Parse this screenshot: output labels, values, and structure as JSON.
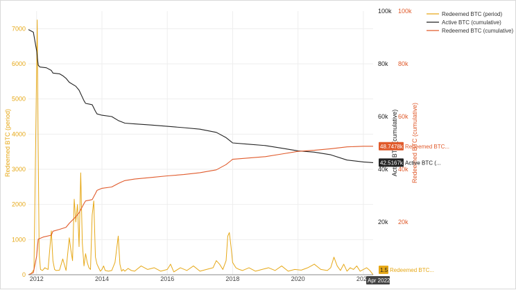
{
  "chart_data": {
    "type": "line",
    "title": "",
    "x_axis": {
      "ticks": [
        "2012",
        "2014",
        "2016",
        "2018",
        "2020",
        "2022"
      ],
      "range": [
        2011.75,
        2022.3
      ]
    },
    "y_left": {
      "label": "Redeemed BTC (period)",
      "range": [
        0,
        7500
      ],
      "ticks": [
        "0",
        "1000",
        "2000",
        "3000",
        "4000",
        "5000",
        "6000",
        "7000"
      ],
      "color": "#e6a817"
    },
    "y_right_active": {
      "label": "Active BTC (cumulative)",
      "range": [
        0,
        100000
      ],
      "ticks": [
        "20k",
        "40k",
        "60k",
        "80k",
        "100k"
      ],
      "color": "#222222"
    },
    "y_right_redeemed": {
      "label": "Redeemed BTC (cumulative)",
      "range": [
        0,
        100000
      ],
      "ticks": [
        "20k",
        "40k",
        "60k",
        "80k",
        "100k"
      ],
      "color": "#e05a2b"
    },
    "legend_position": "top-right",
    "series": [
      {
        "name": "Redeemed BTC (period)",
        "axis": "left",
        "color": "#e6a817",
        "x": [
          2011.75,
          2011.83,
          2011.92,
          2012.0,
          2012.02,
          2012.05,
          2012.08,
          2012.12,
          2012.18,
          2012.25,
          2012.35,
          2012.45,
          2012.5,
          2012.55,
          2012.6,
          2012.7,
          2012.8,
          2012.9,
          2013.0,
          2013.05,
          2013.1,
          2013.15,
          2013.2,
          2013.25,
          2013.3,
          2013.35,
          2013.4,
          2013.45,
          2013.5,
          2013.55,
          2013.6,
          2013.65,
          2013.7,
          2013.75,
          2013.8,
          2013.85,
          2013.9,
          2013.95,
          2014.0,
          2014.05,
          2014.1,
          2014.2,
          2014.3,
          2014.4,
          2014.5,
          2014.55,
          2014.6,
          2014.65,
          2014.7,
          2014.8,
          2014.9,
          2015.0,
          2015.2,
          2015.4,
          2015.6,
          2015.8,
          2016.0,
          2016.1,
          2016.2,
          2016.4,
          2016.6,
          2016.8,
          2017.0,
          2017.2,
          2017.4,
          2017.5,
          2017.6,
          2017.7,
          2017.8,
          2017.85,
          2017.9,
          2017.95,
          2018.0,
          2018.1,
          2018.2,
          2018.3,
          2018.5,
          2018.7,
          2018.9,
          2019.1,
          2019.3,
          2019.5,
          2019.7,
          2019.9,
          2020.1,
          2020.3,
          2020.5,
          2020.7,
          2020.9,
          2021.0,
          2021.1,
          2021.2,
          2021.3,
          2021.4,
          2021.5,
          2021.6,
          2021.7,
          2021.8,
          2021.9,
          2022.0,
          2022.1,
          2022.2,
          2022.3
        ],
        "values": [
          0,
          30,
          150,
          5800,
          7250,
          3500,
          600,
          150,
          120,
          200,
          150,
          1250,
          400,
          150,
          120,
          130,
          450,
          120,
          1050,
          700,
          400,
          2150,
          1500,
          2000,
          800,
          2900,
          900,
          250,
          600,
          350,
          200,
          150,
          1700,
          2100,
          500,
          300,
          200,
          100,
          150,
          250,
          120,
          100,
          120,
          350,
          1100,
          300,
          100,
          150,
          100,
          180,
          120,
          100,
          250,
          150,
          200,
          100,
          150,
          300,
          80,
          200,
          120,
          250,
          100,
          150,
          200,
          400,
          300,
          150,
          400,
          1100,
          1200,
          800,
          350,
          200,
          150,
          120,
          200,
          100,
          150,
          200,
          120,
          250,
          100,
          150,
          130,
          200,
          300,
          150,
          120,
          200,
          500,
          250,
          120,
          300,
          100,
          200,
          150,
          250,
          100,
          150,
          200,
          120,
          1.5
        ]
      },
      {
        "name": "Active BTC (cumulative)",
        "axis": "right",
        "color": "#222222",
        "x": [
          2011.75,
          2011.9,
          2012.0,
          2012.05,
          2012.1,
          2012.3,
          2012.45,
          2012.5,
          2012.7,
          2012.8,
          2012.9,
          2013.0,
          2013.2,
          2013.3,
          2013.45,
          2013.5,
          2013.7,
          2013.8,
          2013.85,
          2014.0,
          2014.3,
          2014.5,
          2014.6,
          2014.7,
          2015.0,
          2015.5,
          2016.0,
          2016.5,
          2017.0,
          2017.5,
          2017.8,
          2017.95,
          2018.0,
          2018.5,
          2019.0,
          2019.5,
          2020.0,
          2020.5,
          2021.0,
          2021.5,
          2022.0,
          2022.3
        ],
        "values": [
          93000,
          92000,
          85000,
          79500,
          78800,
          78500,
          77500,
          76500,
          76200,
          75500,
          74500,
          73000,
          71500,
          70000,
          66000,
          65000,
          64500,
          62000,
          61000,
          60500,
          60000,
          58500,
          58000,
          57500,
          57200,
          56800,
          56300,
          55800,
          55200,
          54000,
          52000,
          50500,
          50000,
          49500,
          49000,
          48000,
          47000,
          46500,
          45500,
          43500,
          42800,
          42517
        ]
      },
      {
        "name": "Redeemed BTC (cumulative)",
        "axis": "right",
        "color": "#e05a2b",
        "x": [
          2011.75,
          2011.9,
          2012.0,
          2012.05,
          2012.2,
          2012.45,
          2012.5,
          2012.7,
          2012.9,
          2013.0,
          2013.2,
          2013.3,
          2013.45,
          2013.5,
          2013.7,
          2013.8,
          2013.85,
          2014.0,
          2014.3,
          2014.5,
          2014.6,
          2014.7,
          2015.0,
          2015.5,
          2016.0,
          2016.5,
          2017.0,
          2017.5,
          2017.8,
          2017.95,
          2018.0,
          2018.5,
          2019.0,
          2019.5,
          2020.0,
          2020.5,
          2021.0,
          2021.5,
          2022.0,
          2022.3
        ],
        "values": [
          0,
          800,
          7000,
          13500,
          14300,
          15000,
          16500,
          17200,
          18000,
          19500,
          22000,
          23500,
          27000,
          28000,
          28500,
          30800,
          32000,
          32800,
          33300,
          34600,
          35200,
          35700,
          36300,
          36900,
          37500,
          38000,
          38700,
          39800,
          41800,
          43300,
          43800,
          44300,
          44800,
          45800,
          46800,
          47200,
          47800,
          48500,
          48748,
          48748
        ]
      }
    ],
    "hover_labels": [
      {
        "value": "48.7478k",
        "series": "Redeemed BTC..."
      },
      {
        "value": "42.5167k",
        "series": "Active BTC (..."
      },
      {
        "value": "1.5",
        "series": "Redeemed BTC..."
      }
    ],
    "hover_x": "Apr 2022"
  }
}
